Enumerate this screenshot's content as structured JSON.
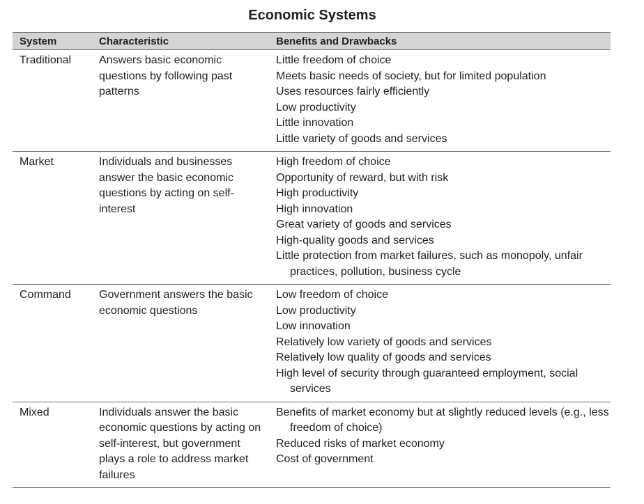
{
  "title": "Economic Systems",
  "headers": {
    "system": "System",
    "characteristic": "Characteristic",
    "benefits": "Benefits and Drawbacks"
  },
  "rows": [
    {
      "system": "Traditional",
      "characteristic": "Answers basic economic questions by following past patterns",
      "benefits": [
        "Little freedom of choice",
        "Meets basic needs of society, but for limited population",
        "Uses resources fairly efficiently",
        "Low productivity",
        "Little innovation",
        "Little variety of goods and services"
      ]
    },
    {
      "system": "Market",
      "characteristic": "Individuals and businesses answer the basic economic questions by acting on self-interest",
      "benefits": [
        "High freedom of choice",
        "Opportunity of reward, but with risk",
        "High productivity",
        "High innovation",
        "Great variety of goods and services",
        "High-quality goods and services",
        "Little protection from market failures, such as monopoly, unfair practices, pollution, business cycle"
      ]
    },
    {
      "system": "Command",
      "characteristic": "Government answers the basic economic questions",
      "benefits": [
        "Low freedom of choice",
        "Low productivity",
        "Low innovation",
        "Relatively low variety of goods and services",
        "Relatively low quality of goods and services",
        "High level of security through guaranteed employment, social services"
      ]
    },
    {
      "system": "Mixed",
      "characteristic": "Individuals answer the basic economic questions by acting on self-interest, but government plays a role to address market failures",
      "benefits": [
        "Benefits of market economy but at slightly reduced levels (e.g., less freedom of choice)",
        "Reduced risks of market economy",
        "Cost of government"
      ]
    }
  ]
}
